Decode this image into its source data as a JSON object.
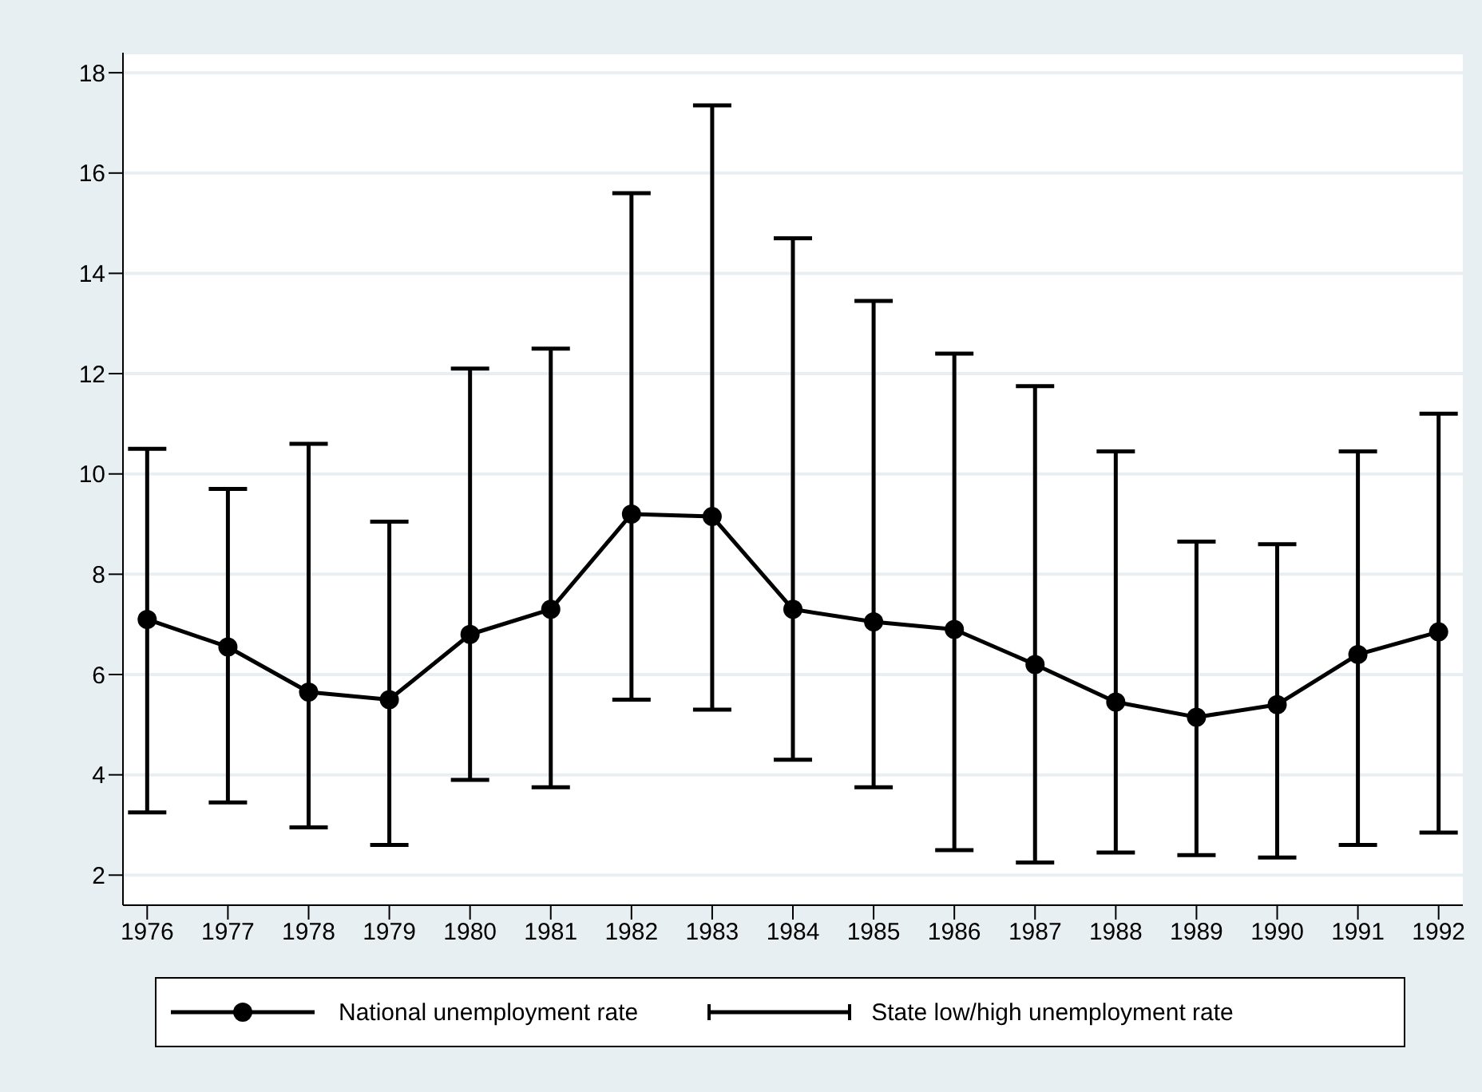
{
  "chart_data": {
    "type": "line",
    "categories": [
      "1976",
      "1977",
      "1978",
      "1979",
      "1980",
      "1981",
      "1982",
      "1983",
      "1984",
      "1985",
      "1986",
      "1987",
      "1988",
      "1989",
      "1990",
      "1991",
      "1992"
    ],
    "series": [
      {
        "name": "National unemployment rate",
        "color": "#000000",
        "values": [
          7.1,
          6.55,
          5.65,
          5.5,
          6.8,
          7.3,
          9.2,
          9.15,
          7.3,
          7.05,
          6.9,
          6.2,
          5.45,
          5.15,
          5.4,
          6.4,
          6.85
        ],
        "errors": [
          [
            3.25,
            10.5
          ],
          [
            3.45,
            9.7
          ],
          [
            2.95,
            10.6
          ],
          [
            2.6,
            9.05
          ],
          [
            3.9,
            12.1
          ],
          [
            3.75,
            12.5
          ],
          [
            5.5,
            15.6
          ],
          [
            5.3,
            17.35
          ],
          [
            4.3,
            14.7
          ],
          [
            3.75,
            13.45
          ],
          [
            2.5,
            12.4
          ],
          [
            2.25,
            11.75
          ],
          [
            2.45,
            10.45
          ],
          [
            2.4,
            8.65
          ],
          [
            2.35,
            8.6
          ],
          [
            2.6,
            10.45
          ],
          [
            2.85,
            11.2
          ]
        ]
      }
    ],
    "annotations": [
      "State low/high unemployment rate"
    ],
    "ylim": [
      1.4,
      18.4
    ],
    "yticks": [
      2,
      4,
      6,
      8,
      10,
      12,
      14,
      16,
      18
    ],
    "grid": "y",
    "legend": "bottom",
    "marker": "circle"
  }
}
